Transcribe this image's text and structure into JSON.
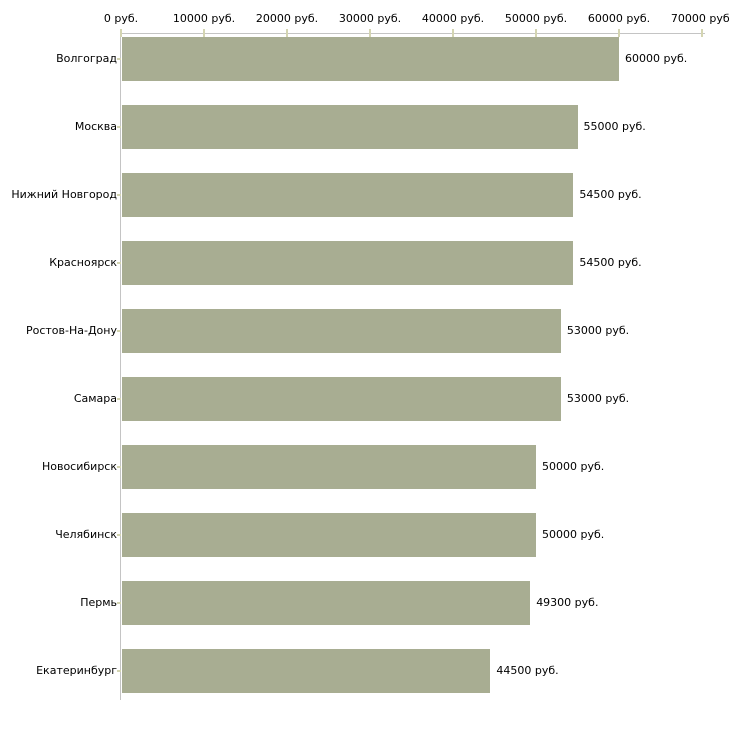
{
  "chart_data": {
    "type": "bar",
    "orientation": "horizontal",
    "title": "",
    "categories": [
      "Волгоград",
      "Москва",
      "Нижний Новгород",
      "Красноярск",
      "Ростов-На-Дону",
      "Самара",
      "Новосибирск",
      "Челябинск",
      "Пермь",
      "Екатеринбург"
    ],
    "values": [
      60000,
      55000,
      54500,
      54500,
      53000,
      53000,
      50000,
      50000,
      49300,
      44500
    ],
    "bar_value_labels": [
      "60000 руб.",
      "55000 руб.",
      "54500 руб.",
      "54500 руб.",
      "53000 руб.",
      "53000 руб.",
      "50000 руб.",
      "50000 руб.",
      "49300 руб.",
      "44500 руб."
    ],
    "x_axis": {
      "position": "top",
      "ticks": [
        0,
        10000,
        20000,
        30000,
        40000,
        50000,
        60000,
        70000
      ],
      "tick_labels": [
        "0 руб.",
        "10000 руб.",
        "20000 руб.",
        "30000 руб.",
        "40000 руб.",
        "50000 руб.",
        "60000 руб.",
        "70000 руб."
      ],
      "range": [
        0,
        70000
      ]
    },
    "unit_suffix": " руб.",
    "grid": false,
    "legend": false,
    "colors": {
      "bar": "#a8ad92",
      "axis_line": "#c4c4c4",
      "tick": "#d4d5b2",
      "text": "#000000",
      "background": "#ffffff"
    }
  }
}
